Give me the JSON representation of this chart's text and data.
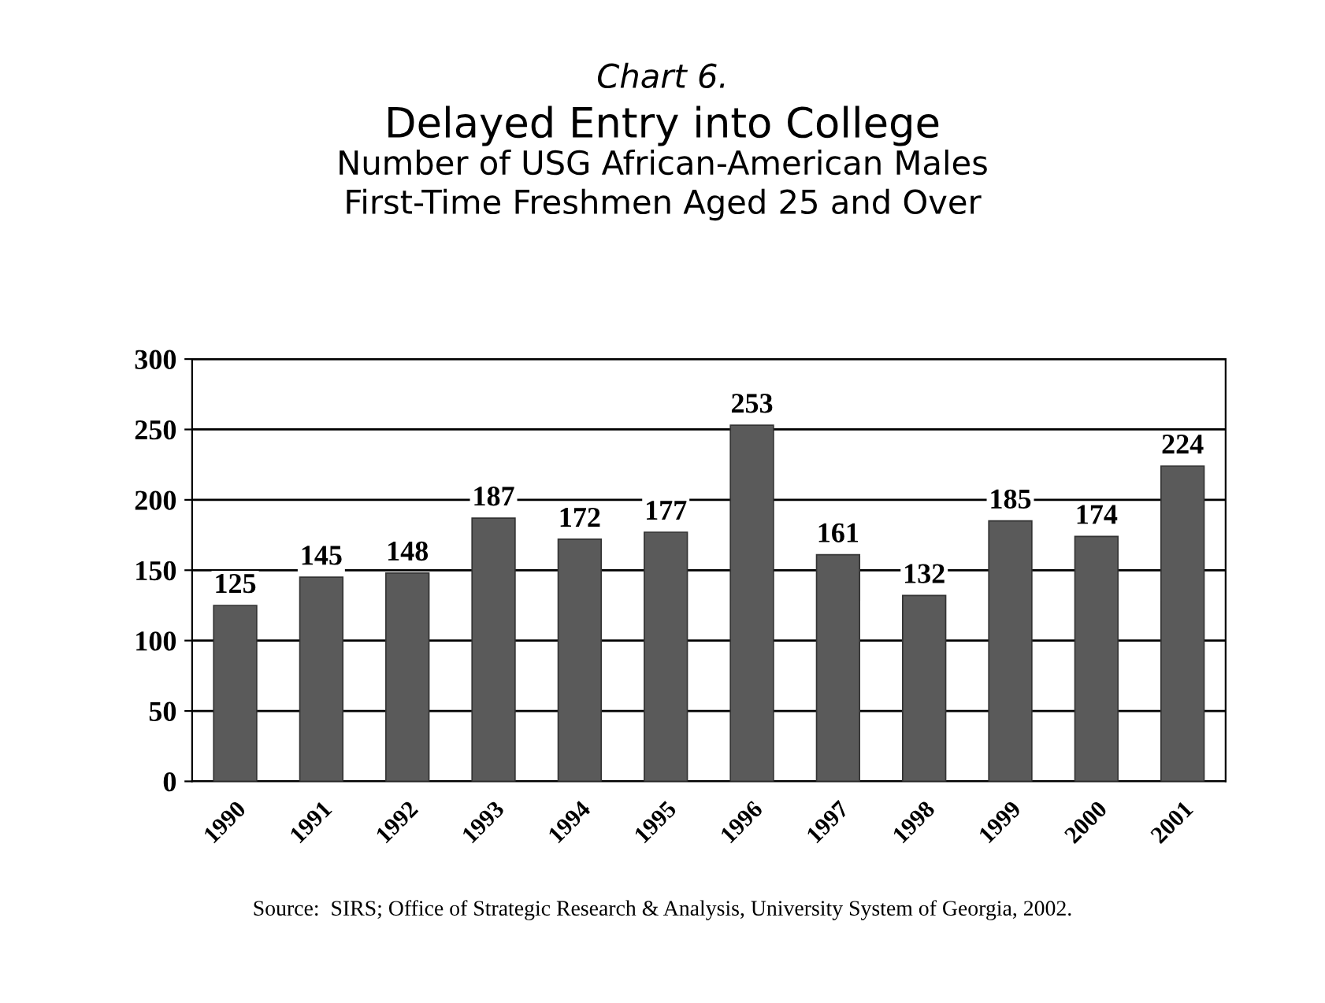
{
  "chart_data": {
    "type": "bar",
    "title": "Delayed Entry into College",
    "subtitle": "Number of USG African-American Males\nFirst-Time Freshmen Aged 25 and Over",
    "annotations": [
      "Chart 6.",
      "Source:  SIRS; Office of Strategic Research & Analysis, University System of Georgia, 2002."
    ],
    "categories": [
      "1990",
      "1991",
      "1992",
      "1993",
      "1994",
      "1995",
      "1996",
      "1997",
      "1998",
      "1999",
      "2000",
      "2001"
    ],
    "values": [
      125,
      145,
      148,
      187,
      172,
      177,
      253,
      161,
      132,
      185,
      174,
      224
    ],
    "color": "#5a5a5a",
    "ylim": [
      0,
      300
    ],
    "yticks": [
      0,
      50,
      100,
      150,
      200,
      250,
      300
    ],
    "grid": "y",
    "data_labels": true,
    "legend": false
  }
}
